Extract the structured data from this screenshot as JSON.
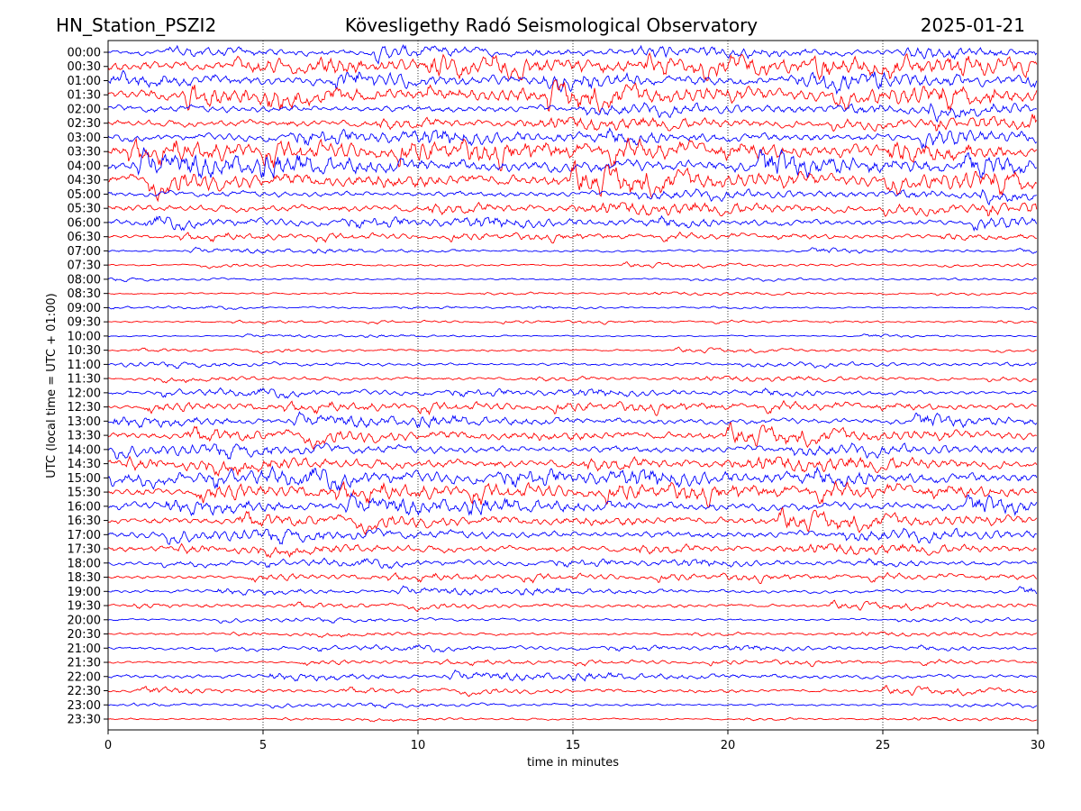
{
  "chart_data": {
    "type": "line",
    "title_left": "HN_Station_PSZI2",
    "title": "Kövesligethy Radó Seismological Observatory",
    "title_right": "2025-01-21",
    "xlabel": "time in minutes",
    "ylabel": "UTC (local time = UTC + 01:00)",
    "xlim": [
      0,
      30
    ],
    "xticks": [
      "0",
      "5",
      "10",
      "15",
      "20",
      "25",
      "30"
    ],
    "grid": "vertical dotted",
    "colors": [
      "#0000ff",
      "#ff0000"
    ],
    "rows": [
      "00:00",
      "00:30",
      "01:00",
      "01:30",
      "02:00",
      "02:30",
      "03:00",
      "03:30",
      "04:00",
      "04:30",
      "05:00",
      "05:30",
      "06:00",
      "06:30",
      "07:00",
      "07:30",
      "08:00",
      "08:30",
      "09:00",
      "09:30",
      "10:00",
      "10:30",
      "11:00",
      "11:30",
      "12:00",
      "12:30",
      "13:00",
      "13:30",
      "14:00",
      "14:30",
      "15:00",
      "15:30",
      "16:00",
      "16:30",
      "17:00",
      "17:30",
      "18:00",
      "18:30",
      "19:00",
      "19:30",
      "20:00",
      "20:30",
      "21:00",
      "21:30",
      "22:00",
      "22:30",
      "23:00",
      "23:30"
    ],
    "relative_amplitude": [
      0.5,
      0.9,
      0.7,
      0.9,
      0.6,
      0.6,
      0.7,
      0.9,
      1.0,
      0.9,
      0.5,
      0.6,
      0.5,
      0.3,
      0.2,
      0.15,
      0.15,
      0.15,
      0.12,
      0.12,
      0.12,
      0.15,
      0.25,
      0.25,
      0.35,
      0.4,
      0.5,
      0.6,
      0.6,
      0.7,
      0.8,
      0.7,
      0.7,
      0.6,
      0.6,
      0.5,
      0.35,
      0.3,
      0.3,
      0.25,
      0.2,
      0.2,
      0.25,
      0.2,
      0.35,
      0.25,
      0.2,
      0.15
    ]
  }
}
